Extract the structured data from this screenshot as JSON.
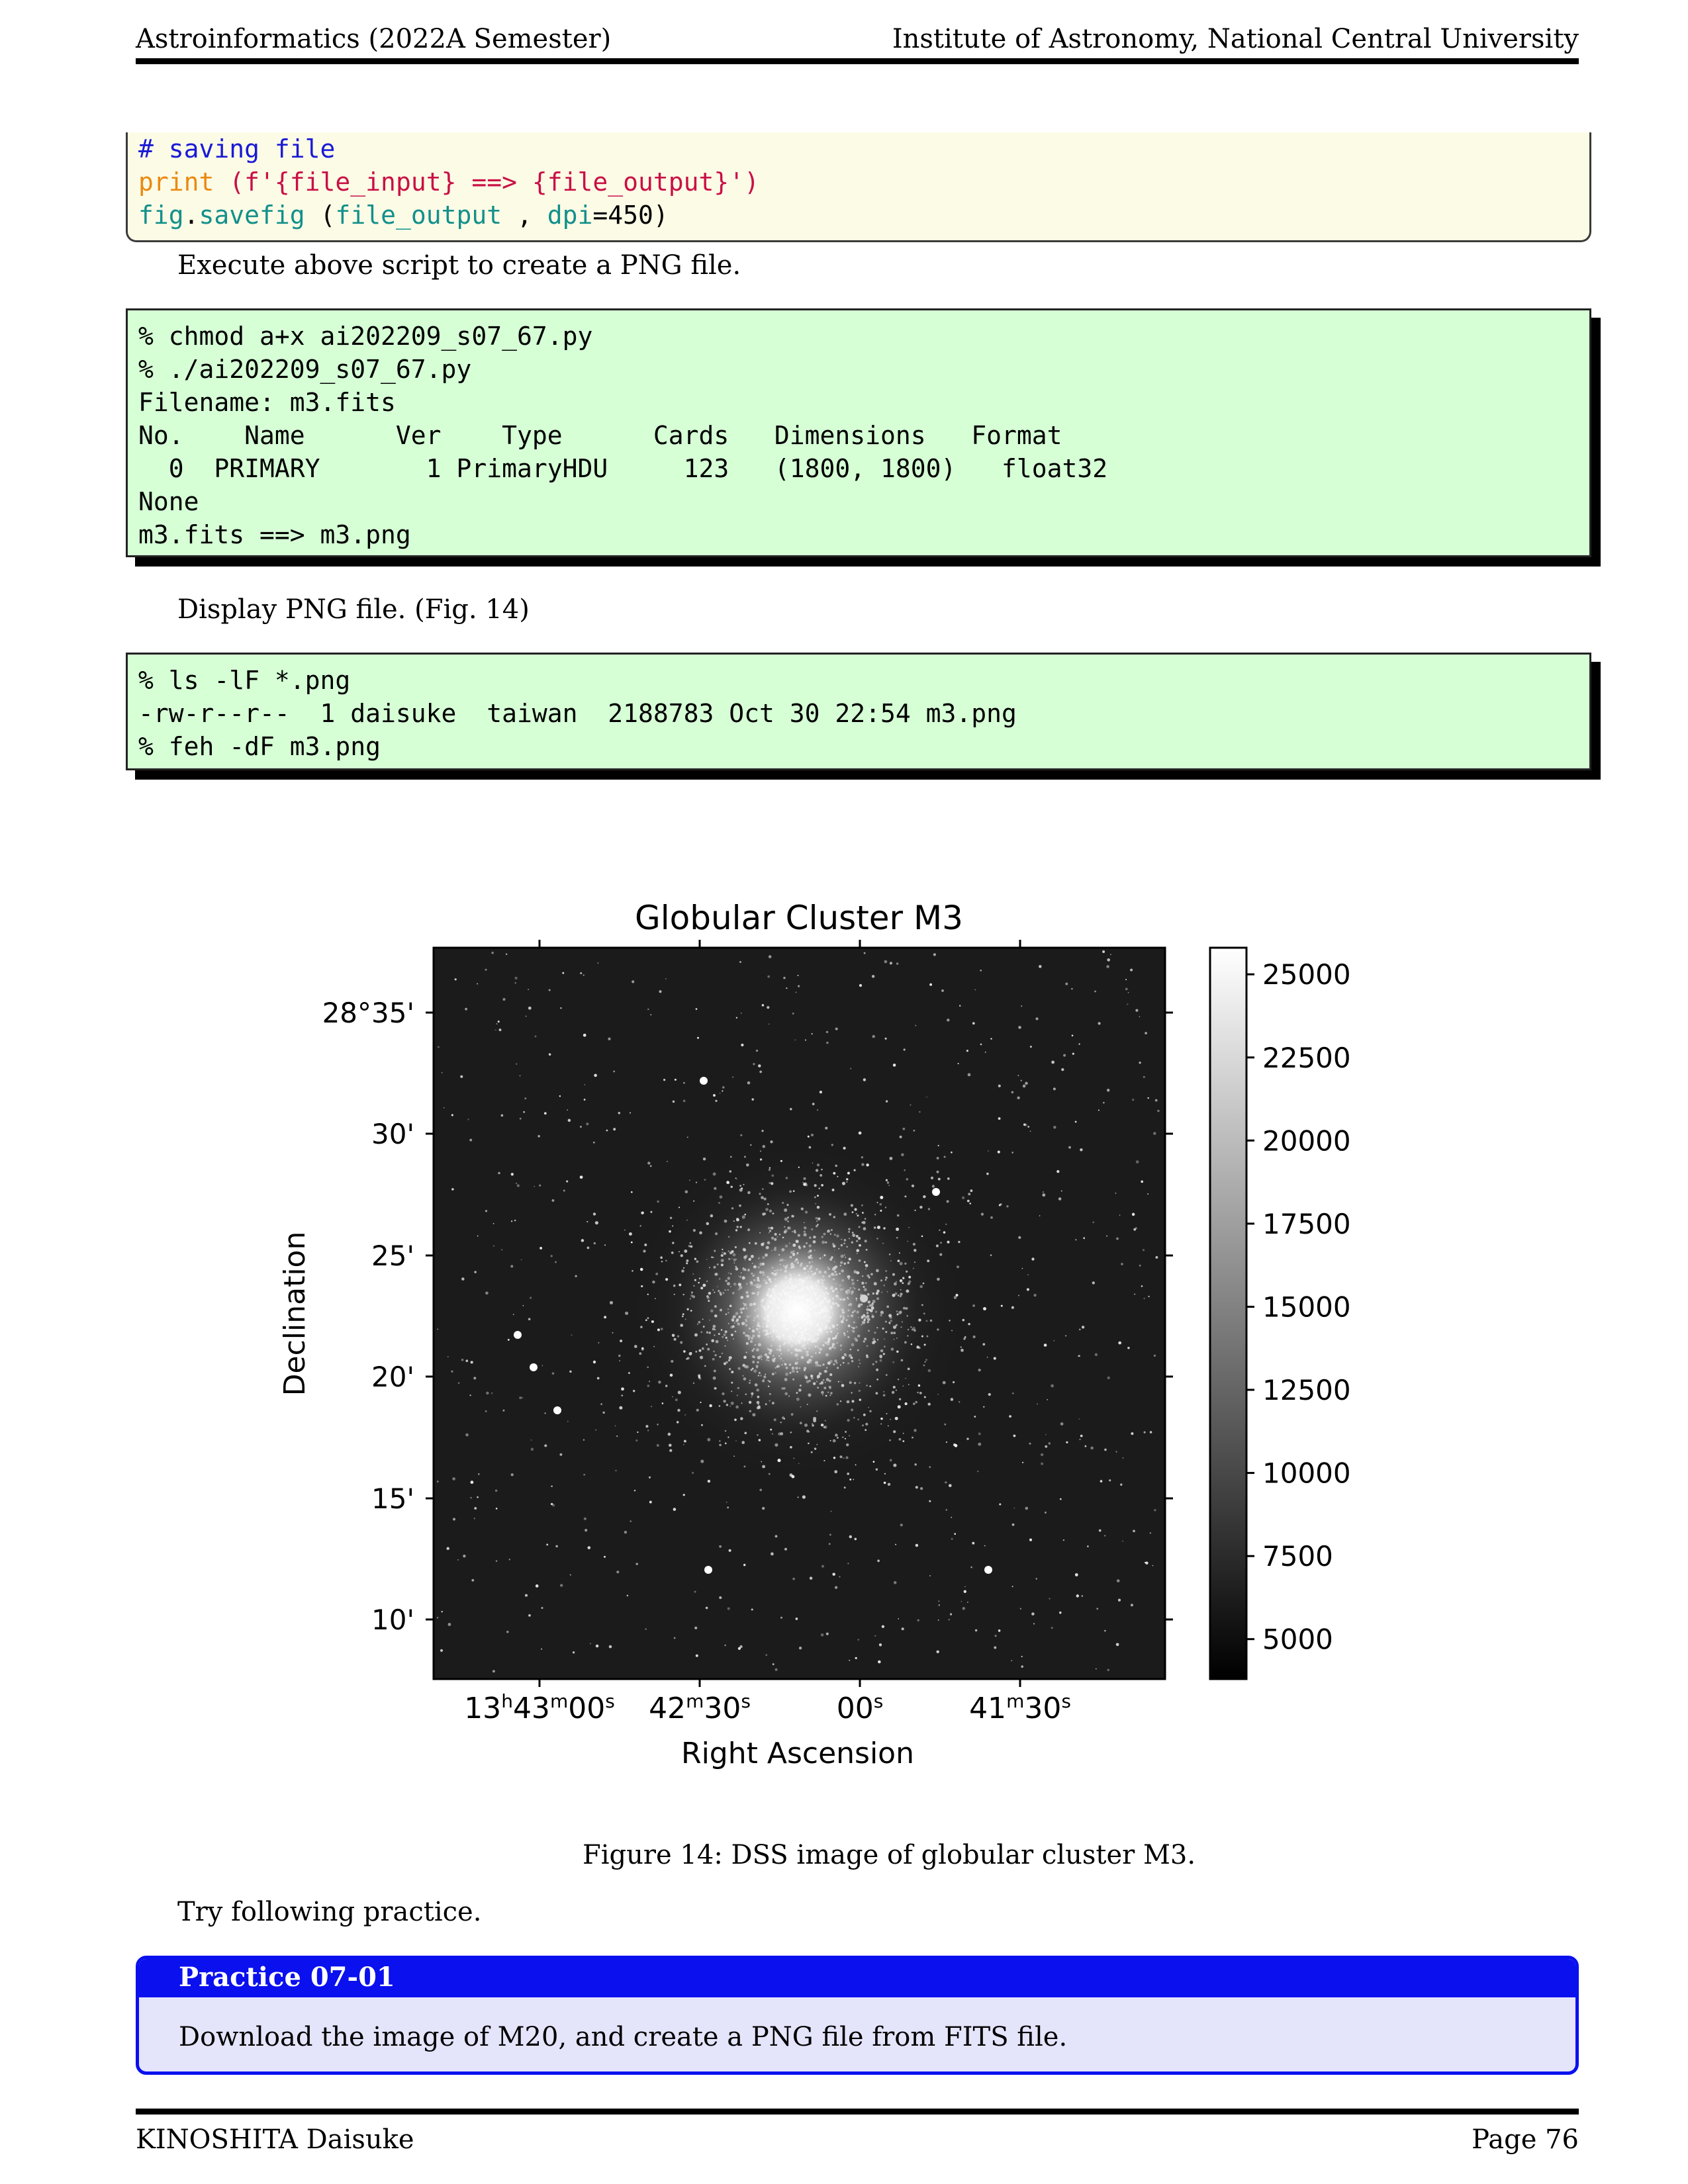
{
  "header": {
    "left": "Astroinformatics (2022A Semester)",
    "right": "Institute of Astronomy, National Central University"
  },
  "python_code": {
    "comment": "# saving file",
    "print_kw": "print",
    "print_args": "(f'{file_input} ==> {file_output}')",
    "fig_obj": "fig",
    "dot": ".",
    "savefig_fn": "savefig",
    "savefig_open": " (",
    "savefig_arg": "file_output",
    "savefig_sep": " , ",
    "dpi_kw": "dpi",
    "dpi_val": "=450)"
  },
  "para_execute": "Execute above script to create a PNG file.",
  "shell1": {
    "lines": [
      "% chmod a+x ai202209_s07_67.py",
      "% ./ai202209_s07_67.py",
      "Filename: m3.fits",
      "No.    Name      Ver    Type      Cards   Dimensions   Format",
      "  0  PRIMARY       1 PrimaryHDU     123   (1800, 1800)   float32",
      "None",
      "m3.fits ==> m3.png"
    ]
  },
  "para_display": "Display PNG file. (Fig. 14)",
  "shell2": {
    "lines": [
      "% ls -lF *.png",
      "-rw-r--r--  1 daisuke  taiwan  2188783 Oct 30 22:54 m3.png",
      "% feh -dF m3.png"
    ]
  },
  "figure": {
    "title": "Globular Cluster M3",
    "xlabel": "Right Ascension",
    "ylabel": "Declination",
    "dec_ticks": [
      "28°35'",
      "30'",
      "25'",
      "20'",
      "15'",
      "10'"
    ],
    "ra_ticks": [
      {
        "h": "13",
        "m": "43",
        "s": "00"
      },
      {
        "h": "",
        "m": "42",
        "s": "30"
      },
      {
        "h": "",
        "m": "",
        "s": "00"
      },
      {
        "h": "",
        "m": "41",
        "s": "30"
      }
    ],
    "colorbar_ticks": [
      "25000",
      "22500",
      "20000",
      "17500",
      "15000",
      "12500",
      "10000",
      "7500",
      "5000"
    ],
    "colorbar_range": [
      3800,
      25800
    ],
    "caption": "Figure 14: DSS image of globular cluster M3."
  },
  "para_try": "Try following practice.",
  "practice": {
    "title": "Practice 07-01",
    "body": "Download the image of M20, and create a PNG file from FITS file."
  },
  "footer": {
    "left": "KINOSHITA Daisuke",
    "right": "Page 76"
  }
}
